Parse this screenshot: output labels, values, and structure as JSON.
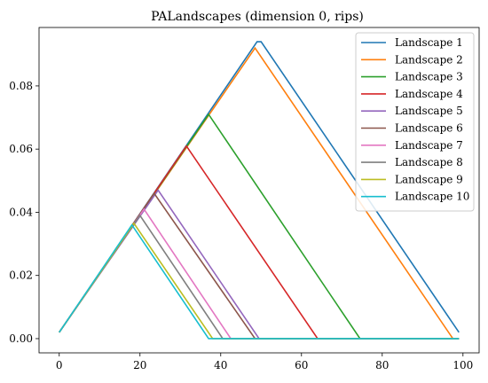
{
  "chart_data": {
    "type": "line",
    "title": "PALandscapes (dimension 0, rips)",
    "xlabel": "",
    "ylabel": "",
    "xlim": [
      -5,
      104
    ],
    "ylim": [
      -0.0045,
      0.0985
    ],
    "xticks": [
      0,
      20,
      40,
      60,
      80,
      100
    ],
    "xtick_labels": [
      "0",
      "20",
      "40",
      "60",
      "80",
      "100"
    ],
    "yticks": [
      0.0,
      0.02,
      0.04,
      0.06,
      0.08
    ],
    "ytick_labels": [
      "0.00",
      "0.02",
      "0.04",
      "0.06",
      "0.08"
    ],
    "grid": false,
    "legend_position": "top-right",
    "series": [
      {
        "name": "Landscape 1",
        "color": "#1f77b4",
        "x": [
          0,
          49,
          50,
          99
        ],
        "y": [
          0.002,
          0.094,
          0.094,
          0.002
        ]
      },
      {
        "name": "Landscape 2",
        "color": "#ff7f0e",
        "x": [
          0,
          48.5,
          97.5,
          99
        ],
        "y": [
          0.002,
          0.092,
          0.0,
          0.0
        ]
      },
      {
        "name": "Landscape 3",
        "color": "#2ca02c",
        "x": [
          0,
          37,
          74.5,
          99
        ],
        "y": [
          0.002,
          0.071,
          0.0,
          0.0
        ]
      },
      {
        "name": "Landscape 4",
        "color": "#d62728",
        "x": [
          0,
          31.5,
          64,
          99
        ],
        "y": [
          0.002,
          0.061,
          0.0,
          0.0
        ]
      },
      {
        "name": "Landscape 5",
        "color": "#9467bd",
        "x": [
          0,
          24.5,
          49.5,
          99
        ],
        "y": [
          0.002,
          0.047,
          0.0,
          0.0
        ]
      },
      {
        "name": "Landscape 6",
        "color": "#8c564b",
        "x": [
          0,
          23.5,
          48.5,
          99
        ],
        "y": [
          0.002,
          0.046,
          0.0,
          0.0
        ]
      },
      {
        "name": "Landscape 7",
        "color": "#e377c2",
        "x": [
          0,
          21,
          42.5,
          99
        ],
        "y": [
          0.002,
          0.041,
          0.0,
          0.0
        ]
      },
      {
        "name": "Landscape 8",
        "color": "#7f7f7f",
        "x": [
          0,
          20,
          40.5,
          99
        ],
        "y": [
          0.002,
          0.039,
          0.0,
          0.0
        ]
      },
      {
        "name": "Landscape 9",
        "color": "#bcbd22",
        "x": [
          0,
          18.5,
          38,
          99
        ],
        "y": [
          0.002,
          0.0365,
          0.0,
          0.0
        ]
      },
      {
        "name": "Landscape 10",
        "color": "#17becf",
        "x": [
          0,
          18,
          37,
          99
        ],
        "y": [
          0.002,
          0.036,
          0.0,
          0.0
        ]
      }
    ]
  }
}
